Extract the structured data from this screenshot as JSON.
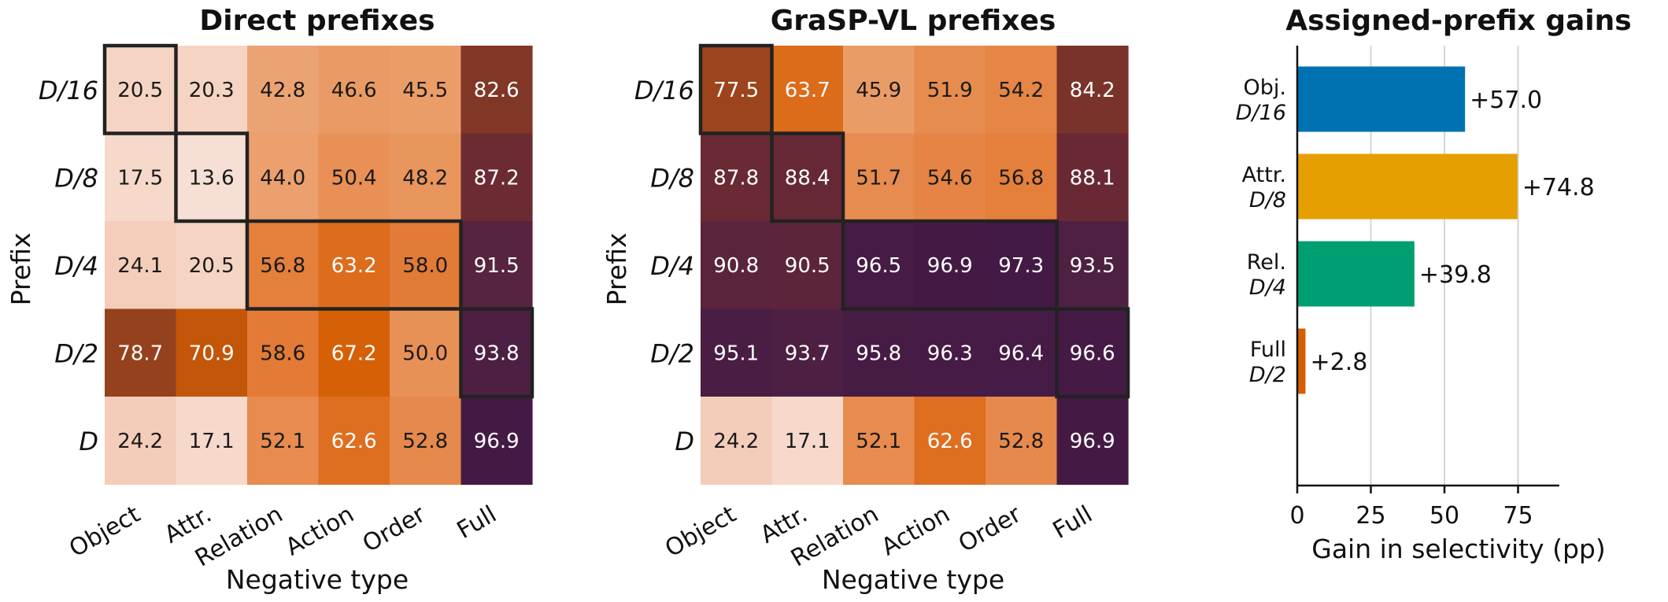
{
  "chart_data": [
    {
      "type": "heatmap",
      "title": "Direct prefixes",
      "xlabel": "Negative type",
      "ylabel": "Prefix",
      "x_categories": [
        "Object",
        "Attr.",
        "Relation",
        "Action",
        "Order",
        "Full"
      ],
      "y_categories": [
        "D/16",
        "D/8",
        "D/4",
        "D/2",
        "D"
      ],
      "values": [
        [
          20.5,
          20.3,
          42.8,
          46.6,
          45.5,
          82.6
        ],
        [
          17.5,
          13.6,
          44.0,
          50.4,
          48.2,
          87.2
        ],
        [
          24.1,
          20.5,
          56.8,
          63.2,
          58.0,
          91.5
        ],
        [
          78.7,
          70.9,
          58.6,
          67.2,
          50.0,
          93.8
        ],
        [
          24.2,
          17.1,
          52.1,
          62.6,
          52.8,
          96.9
        ]
      ],
      "labels": [
        [
          "20.5",
          "20.3",
          "42.8",
          "46.6",
          "45.5",
          "82.6"
        ],
        [
          "17.5",
          "13.6",
          "44.0",
          "50.4",
          "48.2",
          "87.2"
        ],
        [
          "24.1",
          "20.5",
          "56.8",
          "63.2",
          "58.0",
          "91.5"
        ],
        [
          "78.7",
          "70.9",
          "58.6",
          "67.2",
          "50.0",
          "93.8"
        ],
        [
          "24.2",
          "17.1",
          "52.1",
          "62.6",
          "52.8",
          "96.9"
        ]
      ],
      "highlight_groups": [
        {
          "row": 0,
          "cols": [
            0,
            0
          ]
        },
        {
          "row": 1,
          "cols": [
            1,
            1
          ]
        },
        {
          "row": 2,
          "cols": [
            2,
            4
          ]
        },
        {
          "row": 3,
          "cols": [
            5,
            5
          ]
        }
      ]
    },
    {
      "type": "heatmap",
      "title": "GraSP-VL prefixes",
      "xlabel": "Negative type",
      "ylabel": "Prefix",
      "x_categories": [
        "Object",
        "Attr.",
        "Relation",
        "Action",
        "Order",
        "Full"
      ],
      "y_categories": [
        "D/16",
        "D/8",
        "D/4",
        "D/2",
        "D"
      ],
      "values": [
        [
          77.5,
          63.7,
          45.9,
          51.9,
          54.2,
          84.2
        ],
        [
          87.8,
          88.4,
          51.7,
          54.6,
          56.8,
          88.1
        ],
        [
          90.8,
          90.5,
          96.5,
          96.9,
          97.3,
          93.5
        ],
        [
          95.1,
          93.7,
          95.8,
          96.3,
          96.4,
          96.6
        ],
        [
          24.2,
          17.1,
          52.1,
          62.6,
          52.8,
          96.9
        ]
      ],
      "labels": [
        [
          "77.5",
          "63.7",
          "45.9",
          "51.9",
          "54.2",
          "84.2"
        ],
        [
          "87.8",
          "88.4",
          "51.7",
          "54.6",
          "56.8",
          "88.1"
        ],
        [
          "90.8",
          "90.5",
          "96.5",
          "96.9",
          "97.3",
          "93.5"
        ],
        [
          "95.1",
          "93.7",
          "95.8",
          "96.3",
          "96.4",
          "96.6"
        ],
        [
          "24.2",
          "17.1",
          "52.1",
          "62.6",
          "52.8",
          "96.9"
        ]
      ],
      "highlight_groups": [
        {
          "row": 0,
          "cols": [
            0,
            0
          ]
        },
        {
          "row": 1,
          "cols": [
            1,
            1
          ]
        },
        {
          "row": 2,
          "cols": [
            2,
            4
          ]
        },
        {
          "row": 3,
          "cols": [
            5,
            5
          ]
        }
      ]
    },
    {
      "type": "bar",
      "orientation": "horizontal",
      "title": "Assigned-prefix gains",
      "xlabel": "Gain in selectivity (pp)",
      "ylabel": "",
      "categories": [
        {
          "line1": "Obj.",
          "line2": "D/16"
        },
        {
          "line1": "Attr.",
          "line2": "D/8"
        },
        {
          "line1": "Rel.",
          "line2": "D/4"
        },
        {
          "line1": "Full",
          "line2": "D/2"
        }
      ],
      "values": [
        57.0,
        74.8,
        39.8,
        2.8
      ],
      "value_labels": [
        "+57.0",
        "+74.8",
        "+39.8",
        "+2.8"
      ],
      "colors": [
        "#0072b2",
        "#e69f00",
        "#009e73",
        "#d55e00"
      ],
      "xlim": [
        0,
        89
      ],
      "xticks": [
        0,
        25,
        50,
        75
      ],
      "xtick_labels": [
        "0",
        "25",
        "50",
        "75"
      ],
      "grid": "vertical"
    }
  ]
}
